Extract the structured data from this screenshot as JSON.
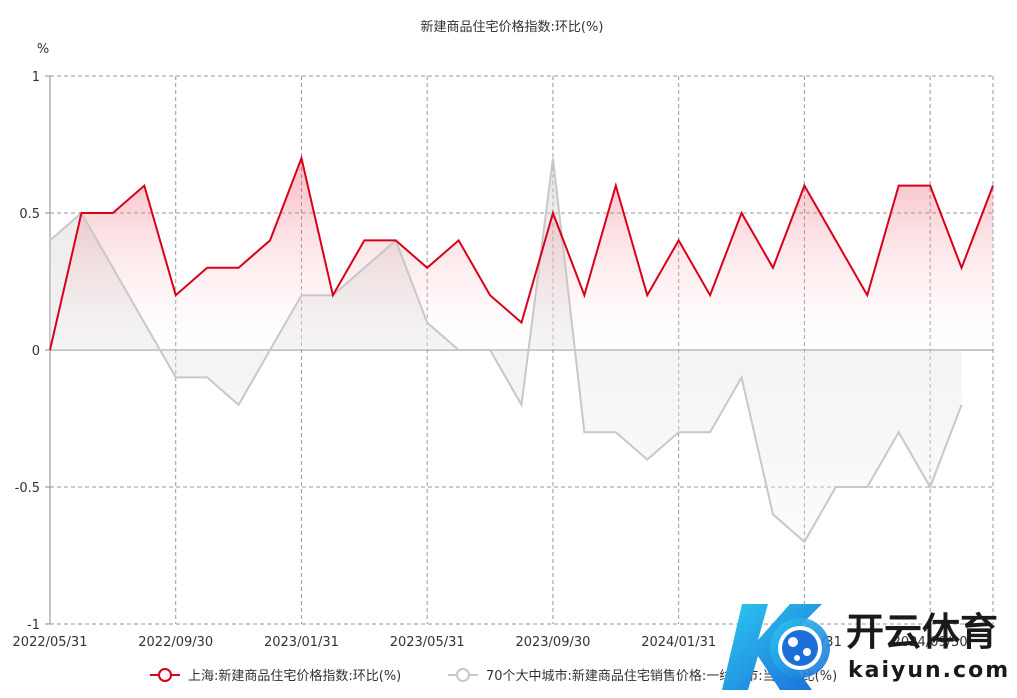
{
  "chart_data": {
    "type": "line",
    "title": "新建商品住宅价格指数:环比(%)",
    "y_unit": "%",
    "ylim": [
      -1,
      1
    ],
    "y_ticks": [
      1,
      0.5,
      0,
      -0.5,
      -1
    ],
    "y_tick_labels": [
      "1",
      "0.5",
      "0",
      "-0.5",
      "-1"
    ],
    "x_tick_labels": [
      "2022/05/31",
      "2022/09/30",
      "2023/01/31",
      "2023/05/31",
      "2023/09/30",
      "2024/01/31",
      "2024/05/31",
      "2024/09/30"
    ],
    "x_tick_index": [
      0,
      4,
      8,
      12,
      16,
      20,
      24,
      28
    ],
    "n_points": 31,
    "grid": true,
    "legend_position": "bottom",
    "series": [
      {
        "name": "上海:新建商品住宅价格指数:环比(%)",
        "color": "#d9001b",
        "values": [
          0,
          0.5,
          0.5,
          0.6,
          0.2,
          0.3,
          0.3,
          0.4,
          0.7,
          0.2,
          0.4,
          0.4,
          0.3,
          0.4,
          0.2,
          0.1,
          0.5,
          0.2,
          0.6,
          0.2,
          0.4,
          0.2,
          0.5,
          0.3,
          0.6,
          0.4,
          0.2,
          0.6,
          0.6,
          0.3,
          0.6
        ]
      },
      {
        "name": "70个大中城市:新建商品住宅销售价格:一线城市:当月环比(%)",
        "color": "#c8c8c8",
        "values": [
          0.4,
          0.5,
          0.3,
          0.1,
          -0.1,
          -0.1,
          -0.2,
          0,
          0.2,
          0.2,
          0.3,
          0.4,
          0.1,
          0,
          0,
          -0.2,
          0.7,
          -0.3,
          -0.3,
          -0.4,
          -0.3,
          -0.3,
          -0.1,
          -0.6,
          -0.7,
          -0.5,
          -0.5,
          -0.3,
          -0.5,
          -0.2,
          null
        ]
      }
    ]
  },
  "watermark": {
    "cn_text": "开云体育",
    "en_text": "kaiyun.com",
    "logo_icon": "k-ball-logo-icon"
  }
}
